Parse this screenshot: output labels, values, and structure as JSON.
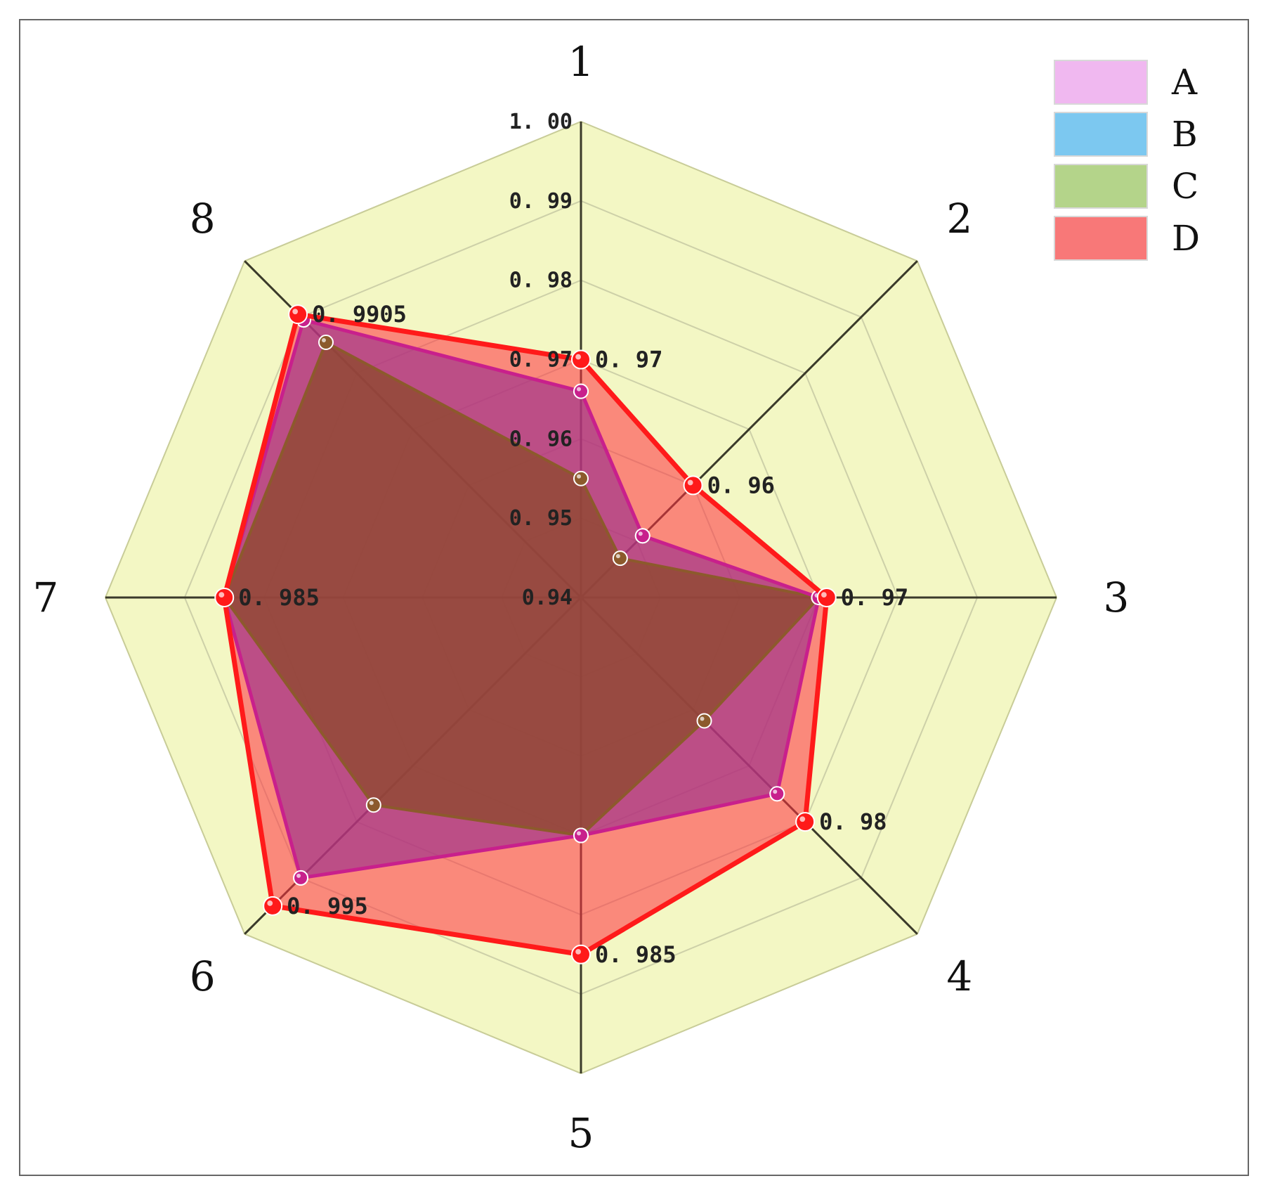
{
  "chart_data": {
    "type": "radar",
    "axes": [
      "1",
      "2",
      "3",
      "4",
      "5",
      "6",
      "7",
      "8"
    ],
    "rlim": [
      0.94,
      1.0
    ],
    "ticks": [
      0.94,
      0.95,
      0.96,
      0.97,
      0.98,
      0.99,
      1.0
    ],
    "tick_labels": [
      "0.94",
      "0. 95",
      "0. 96",
      "0. 97",
      "0. 98",
      "0. 99",
      "1. 00"
    ],
    "grid": true,
    "legend_position": "top-right",
    "series": [
      {
        "name": "A",
        "color": "#c8208c",
        "values": [
          0.966,
          0.951,
          0.97,
          0.975,
          0.97,
          0.99,
          0.985,
          0.9895
        ]
      },
      {
        "name": "B",
        "color": "#8a4a8a",
        "values": [
          0.966,
          0.951,
          0.97,
          0.975,
          0.97,
          0.99,
          0.985,
          0.9895
        ]
      },
      {
        "name": "C",
        "color": "#8c5a2c",
        "values": [
          0.955,
          0.947,
          0.97,
          0.962,
          0.97,
          0.977,
          0.985,
          0.9855
        ]
      },
      {
        "name": "D",
        "color": "#ff1a1a",
        "values": [
          0.97,
          0.96,
          0.971,
          0.98,
          0.985,
          0.995,
          0.985,
          0.9905
        ]
      }
    ],
    "legend_swatch_colors": [
      "#f0b8f0",
      "#7cc8f0",
      "#b4d48a",
      "#f87878"
    ],
    "annotations": [
      {
        "axis": "1",
        "text": "0. 97"
      },
      {
        "axis": "2",
        "text": "0. 96"
      },
      {
        "axis": "3",
        "text": "0. 97"
      },
      {
        "axis": "4",
        "text": "0. 98"
      },
      {
        "axis": "5",
        "text": "0. 985"
      },
      {
        "axis": "6",
        "text": "0. 995"
      },
      {
        "axis": "7",
        "text": "0. 985"
      },
      {
        "axis": "8",
        "text": "0. 9905"
      }
    ]
  }
}
